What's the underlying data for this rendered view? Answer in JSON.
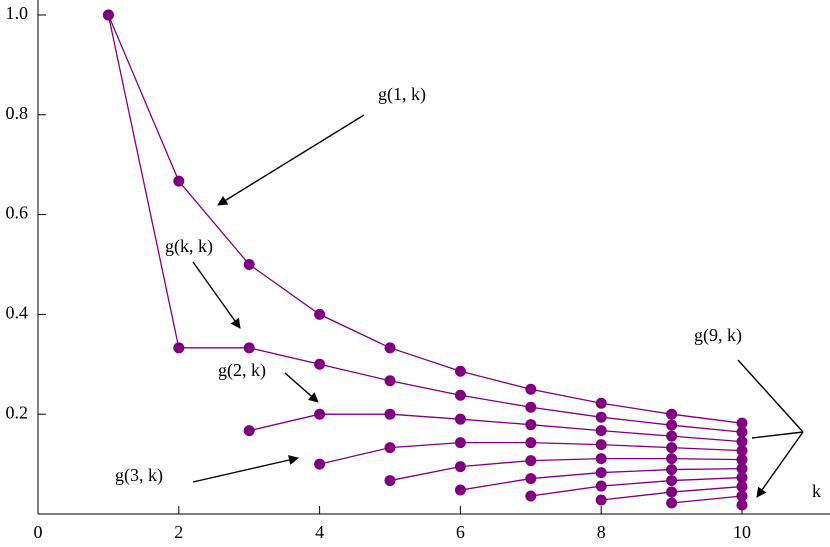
{
  "chart_data": {
    "type": "line",
    "x": [
      1,
      2,
      3,
      4,
      5,
      6,
      7,
      8,
      9,
      10
    ],
    "x_label": "k",
    "color": "#800080",
    "series": [
      {
        "values": [
          1,
          0.667,
          0.5,
          0.4,
          0.333,
          0.286,
          0.25,
          0.222,
          0.2,
          0.182
        ]
      },
      {
        "values": [
          1,
          0.333,
          0.333,
          0.3,
          0.267,
          0.238,
          0.214,
          0.194,
          0.178,
          0.164
        ]
      },
      {
        "values": [
          null,
          null,
          0.167,
          0.2,
          0.2,
          0.19,
          0.179,
          0.167,
          0.156,
          0.145
        ]
      },
      {
        "values": [
          null,
          null,
          null,
          0.1,
          0.133,
          0.143,
          0.143,
          0.139,
          0.133,
          0.127
        ]
      },
      {
        "values": [
          null,
          null,
          null,
          null,
          0.067,
          0.095,
          0.107,
          0.111,
          0.111,
          0.109
        ]
      },
      {
        "values": [
          null,
          null,
          null,
          null,
          null,
          0.048,
          0.071,
          0.083,
          0.089,
          0.091
        ]
      },
      {
        "values": [
          null,
          null,
          null,
          null,
          null,
          null,
          0.036,
          0.056,
          0.067,
          0.073
        ]
      },
      {
        "values": [
          null,
          null,
          null,
          null,
          null,
          null,
          null,
          0.028,
          0.044,
          0.055
        ]
      },
      {
        "values": [
          null,
          null,
          null,
          null,
          null,
          null,
          null,
          null,
          0.022,
          0.036
        ]
      },
      {
        "values": [
          null,
          null,
          null,
          null,
          null,
          null,
          null,
          null,
          null,
          0.018
        ]
      }
    ],
    "xlim": [
      0,
      11.25
    ],
    "xticks": [
      0,
      2,
      4,
      6,
      8,
      10
    ],
    "ylim": [
      0,
      1.03
    ],
    "yticks": [
      0.2,
      0.4,
      0.6,
      0.8,
      {
        "value": 1,
        "label": "1.0"
      }
    ],
    "annotations": [
      "g(1, k)",
      "g(k, k)",
      "g(2, k)",
      "g(3, k)",
      "g(9, k)"
    ]
  }
}
